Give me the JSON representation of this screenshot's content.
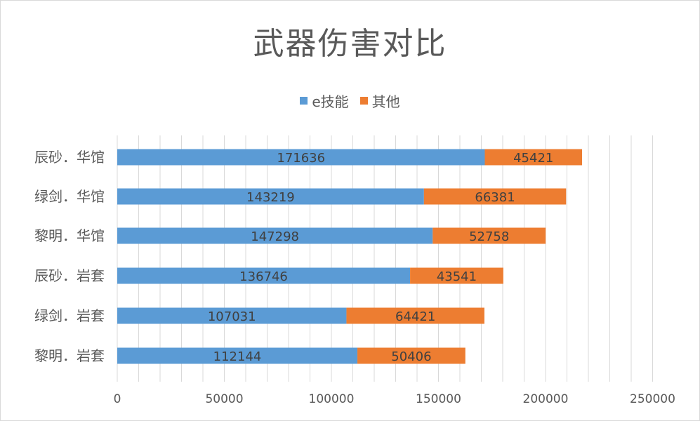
{
  "chart_data": {
    "type": "bar",
    "orientation": "horizontal",
    "stacked": true,
    "title": "武器伤害对比",
    "categories": [
      "辰砂．华馆",
      "绿剑．华馆",
      "黎明．华馆",
      "辰砂．岩套",
      "绿剑．岩套",
      "黎明．岩套"
    ],
    "series": [
      {
        "name": "e技能",
        "color": "#5b9bd5",
        "values": [
          171636,
          143219,
          147298,
          136746,
          107031,
          112144
        ]
      },
      {
        "name": "其他",
        "color": "#ed7d31",
        "values": [
          45421,
          66381,
          52758,
          43541,
          64421,
          50406
        ]
      }
    ],
    "xlim": [
      0,
      250000
    ],
    "xticks": [
      0,
      50000,
      100000,
      150000,
      200000,
      250000
    ],
    "grid": true,
    "legend_position": "top"
  }
}
